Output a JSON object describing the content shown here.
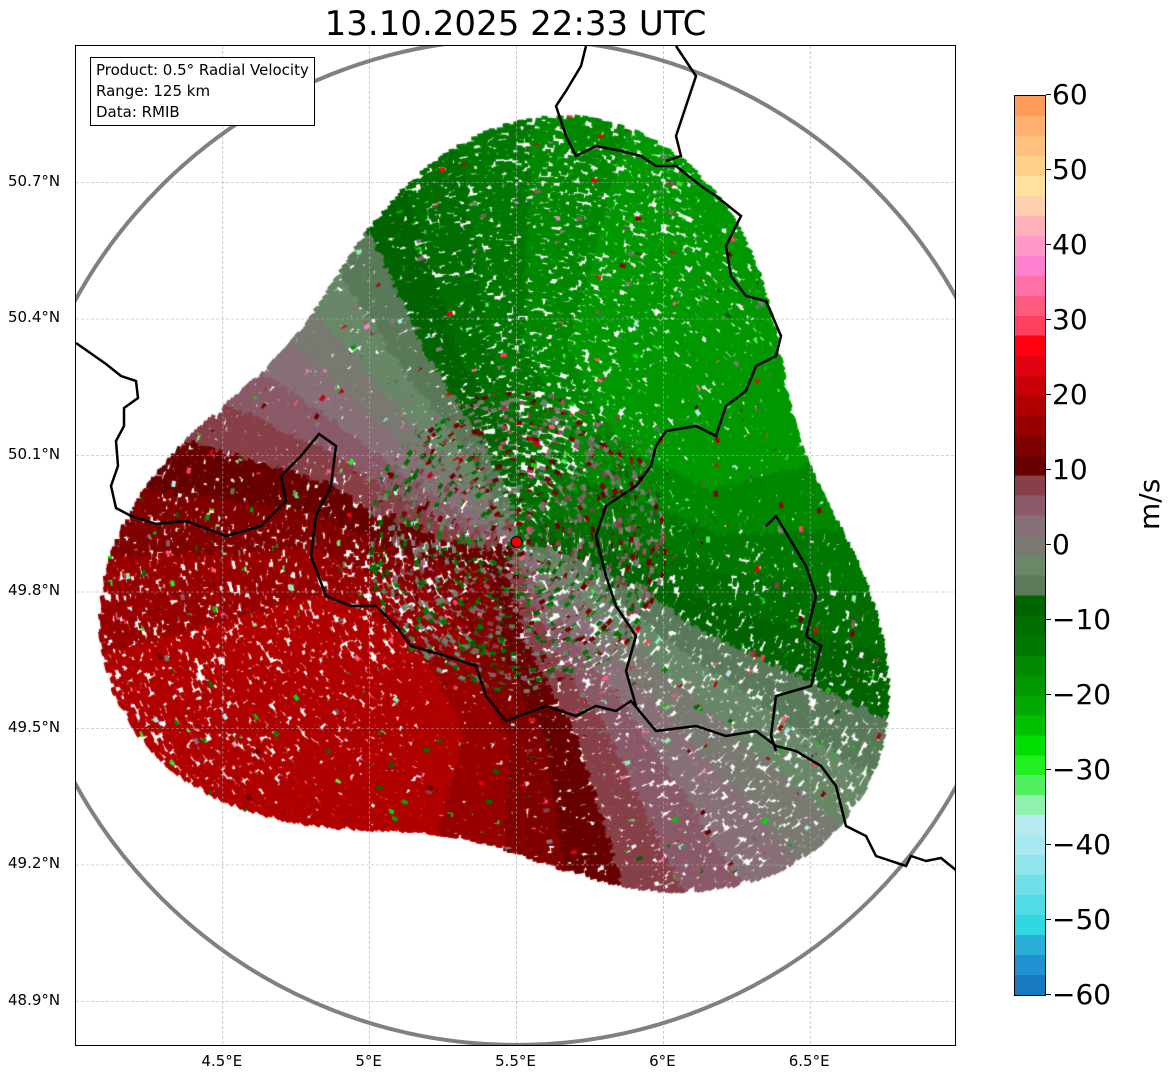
{
  "title": "13.10.2025 22:33 UTC",
  "info_box": {
    "product": "Product: 0.5° Radial Velocity",
    "range": "Range: 125 km",
    "data": "Data: RMIB"
  },
  "chart_data": {
    "type": "heatmap",
    "title": "13.10.2025 22:33 UTC",
    "extent_lon": [
      4.0,
      7.0
    ],
    "extent_lat": [
      48.8,
      51.0
    ],
    "radar_site": {
      "lon": 5.5,
      "lat": 49.91
    },
    "lon_ticks": [
      "4.5°E",
      "5°E",
      "5.5°E",
      "6°E",
      "6.5°E"
    ],
    "lon_tick_values": [
      4.5,
      5.0,
      5.5,
      6.0,
      6.5
    ],
    "lat_ticks": [
      "50.7°N",
      "50.4°N",
      "50.1°N",
      "49.8°N",
      "49.5°N",
      "49.2°N",
      "48.9°N"
    ],
    "lat_tick_values": [
      50.7,
      50.4,
      50.1,
      49.8,
      49.5,
      49.2,
      48.9
    ],
    "grid": true,
    "colorbar": {
      "label": "m/s",
      "range": [
        -60,
        60
      ],
      "ticks": [
        "60",
        "50",
        "40",
        "30",
        "20",
        "10",
        "0",
        "−10",
        "−20",
        "−30",
        "−40",
        "−50",
        "−60"
      ],
      "colors_top_to_bottom": [
        "#ff9c5a",
        "#ffb070",
        "#ffc080",
        "#ffd08c",
        "#ffe09c",
        "#ffd0b0",
        "#ffb0b8",
        "#ff98c8",
        "#ff80d0",
        "#ff70a8",
        "#ff5a80",
        "#ff4060",
        "#ff0010",
        "#e00010",
        "#c80008",
        "#b00000",
        "#980000",
        "#800000",
        "#680000",
        "#884048",
        "#8a5a68",
        "#887078",
        "#7a7a72",
        "#688868",
        "#5a7a5a",
        "#006400",
        "#006e00",
        "#007800",
        "#008800",
        "#009800",
        "#00a800",
        "#00c000",
        "#00e000",
        "#20f020",
        "#50f060",
        "#90f0b0",
        "#b8eaf0",
        "#a8e8f0",
        "#90e4ec",
        "#70e0e8",
        "#50dce4",
        "#30d8e0",
        "#28b0d8",
        "#2090d0",
        "#1878c0"
      ]
    },
    "velocity_pattern": {
      "inbound_azimuth_deg": 45,
      "max_speed": 20
    }
  }
}
